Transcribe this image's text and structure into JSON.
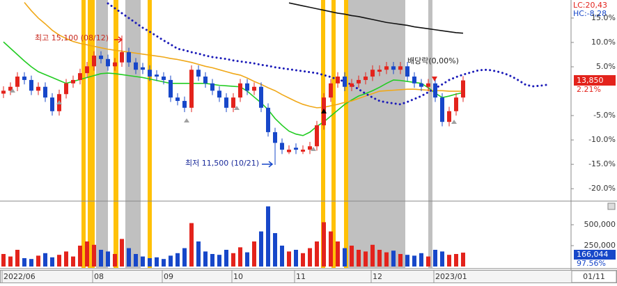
{
  "chart_data": {
    "type": "candlestick",
    "categories": [
      "2022/06",
      null,
      null,
      null,
      null,
      null,
      null,
      null,
      null,
      null,
      null,
      null,
      null,
      "08",
      null,
      null,
      null,
      null,
      null,
      null,
      null,
      null,
      null,
      "09",
      null,
      null,
      null,
      null,
      null,
      null,
      null,
      null,
      null,
      "10",
      null,
      null,
      null,
      null,
      null,
      null,
      null,
      null,
      "11",
      null,
      null,
      null,
      null,
      null,
      null,
      null,
      null,
      null,
      null,
      "12",
      null,
      null,
      null,
      null,
      null,
      null,
      null,
      null,
      "2023/01",
      null,
      null,
      null,
      null,
      null,
      null,
      null,
      null,
      null,
      null,
      null,
      null,
      null,
      null,
      null,
      null
    ],
    "open": [
      -0.5,
      0.1,
      0.9,
      3.0,
      2.3,
      0.1,
      0.9,
      -1.3,
      -4.1,
      -0.6,
      1.6,
      2.3,
      3.7,
      5.1,
      7.3,
      6.6,
      5.1,
      5.9,
      8.0,
      5.9,
      4.9,
      4.4,
      3.4,
      3.0,
      2.3,
      -1.3,
      -2.0,
      -3.4,
      4.4,
      3.0,
      1.6,
      0.1,
      -1.3,
      -3.4,
      -1.3,
      1.6,
      0.1,
      0.9,
      -3.4,
      -8.4,
      -10.6,
      -12.5,
      -11.6,
      -12.4,
      -12.0,
      -11.3,
      -7.0,
      -1.3,
      1.6,
      3.0,
      0.9,
      1.6,
      2.3,
      3.0,
      4.0,
      4.4,
      5.1,
      4.4,
      5.1,
      3.0,
      1.6,
      0.9,
      1.6,
      -1.3,
      -6.3,
      -4.1,
      -1.3,
      null,
      null,
      null,
      null,
      null,
      null,
      null,
      null,
      null,
      null,
      null,
      null
    ],
    "high": [
      1.0,
      1.8,
      3.9,
      3.9,
      3.2,
      1.8,
      1.8,
      -0.4,
      0.3,
      2.5,
      3.2,
      4.6,
      6.0,
      8.2,
      8.2,
      7.5,
      6.8,
      11.4,
      8.9,
      6.8,
      5.8,
      5.3,
      4.3,
      3.9,
      3.2,
      -0.4,
      -1.1,
      5.3,
      5.3,
      3.9,
      2.5,
      1.0,
      -0.4,
      -0.4,
      2.5,
      2.5,
      1.8,
      1.8,
      -2.5,
      -7.5,
      -9.7,
      -11.1,
      -10.7,
      -11.1,
      -10.4,
      -6.1,
      -0.4,
      2.5,
      3.9,
      3.9,
      2.5,
      3.2,
      3.9,
      5.3,
      5.3,
      6.0,
      6.0,
      6.0,
      6.0,
      3.9,
      2.5,
      2.5,
      2.5,
      -0.4,
      -3.2,
      -0.4,
      3.1,
      null,
      null,
      null,
      null,
      null,
      null,
      null,
      null,
      null,
      null,
      null,
      null
    ],
    "low": [
      -1.4,
      -0.8,
      0.0,
      1.4,
      -0.8,
      -0.8,
      -2.2,
      -5.0,
      -5.0,
      -1.5,
      0.7,
      1.4,
      2.8,
      4.2,
      5.7,
      4.2,
      4.2,
      5.0,
      5.0,
      3.5,
      3.5,
      2.1,
      2.1,
      1.4,
      -2.2,
      -2.9,
      -4.3,
      -4.3,
      2.1,
      0.7,
      -0.8,
      -2.2,
      -4.3,
      -4.3,
      -2.2,
      -0.8,
      -0.8,
      -4.3,
      -9.3,
      -15.1,
      -12.9,
      -12.9,
      -12.9,
      -12.9,
      -12.9,
      -12.2,
      -7.9,
      -2.2,
      0.7,
      0.0,
      0.0,
      0.7,
      1.4,
      2.1,
      3.1,
      3.5,
      3.5,
      3.5,
      2.1,
      0.7,
      0.0,
      0.0,
      -2.2,
      -7.2,
      -7.2,
      -5.0,
      -2.2,
      null,
      null,
      null,
      null,
      null,
      null,
      null,
      null,
      null,
      null,
      null,
      null
    ],
    "close": [
      0.1,
      0.9,
      3.0,
      2.3,
      0.1,
      0.9,
      -1.3,
      -4.1,
      -0.6,
      1.6,
      2.3,
      3.7,
      5.1,
      7.3,
      6.6,
      5.1,
      5.9,
      8.0,
      5.9,
      4.4,
      4.4,
      3.0,
      3.0,
      2.3,
      -1.3,
      -2.0,
      -3.4,
      4.4,
      3.0,
      1.6,
      0.1,
      -1.3,
      -3.4,
      -1.3,
      1.6,
      0.1,
      0.9,
      -3.4,
      -8.4,
      -10.6,
      -12.0,
      -12.0,
      -12.0,
      -12.0,
      -11.3,
      -7.0,
      -1.3,
      1.6,
      3.0,
      0.9,
      1.6,
      2.3,
      3.0,
      4.4,
      4.4,
      5.1,
      4.4,
      5.1,
      3.0,
      1.6,
      0.9,
      1.6,
      -1.3,
      -6.3,
      -4.1,
      -1.3,
      2.21,
      null,
      null,
      null,
      null,
      null,
      null,
      null,
      null,
      null,
      null,
      null,
      null
    ],
    "volume": [
      150000,
      120000,
      200000,
      100000,
      90000,
      130000,
      160000,
      110000,
      140000,
      180000,
      120000,
      250000,
      300000,
      260000,
      200000,
      180000,
      150000,
      330000,
      220000,
      150000,
      120000,
      100000,
      110000,
      90000,
      130000,
      160000,
      220000,
      520000,
      300000,
      180000,
      150000,
      140000,
      200000,
      160000,
      230000,
      170000,
      300000,
      420000,
      720000,
      400000,
      250000,
      180000,
      200000,
      160000,
      220000,
      300000,
      530000,
      420000,
      300000,
      220000,
      250000,
      200000,
      180000,
      260000,
      200000,
      170000,
      190000,
      150000,
      140000,
      130000,
      160000,
      120000,
      200000,
      180000,
      140000,
      150000,
      166044,
      null,
      null,
      null,
      null,
      null,
      null,
      null,
      null,
      null,
      null,
      null,
      null
    ],
    "up_color": "#e3231c",
    "down_color": "#1747c9",
    "series": [
      {
        "color": "#22cc22",
        "values": [
          10.1,
          8.8,
          7.5,
          6.2,
          5.0,
          4.0,
          3.4,
          2.8,
          2.2,
          1.6,
          2.0,
          2.4,
          2.8,
          3.2,
          3.6,
          3.7,
          3.6,
          3.4,
          3.2,
          3.0,
          2.8,
          2.5,
          2.2,
          1.9,
          1.6,
          1.6,
          1.6,
          1.6,
          1.6,
          1.6,
          1.4,
          1.2,
          1.1,
          1.0,
          0.9,
          0.0,
          -1.2,
          -2.4,
          -3.8,
          -5.6,
          -7.0,
          -8.2,
          -8.8,
          -9.1,
          -8.4,
          -7.2,
          -6.3,
          -5.1,
          -3.9,
          -2.7,
          -1.8,
          -1.0,
          -0.5,
          0.1,
          0.8,
          1.6,
          2.3,
          2.2,
          2.0,
          1.8,
          1.6,
          0.7,
          -0.4,
          -1.3,
          -1.0,
          -0.6,
          -0.3,
          null,
          null,
          null,
          null,
          null,
          null,
          null,
          null,
          null,
          null,
          null,
          null
        ]
      },
      {
        "color": "#f0a818",
        "values": [
          null,
          null,
          null,
          18.2,
          16.5,
          15.0,
          13.8,
          12.5,
          11.5,
          10.8,
          10.2,
          9.8,
          9.5,
          9.2,
          8.9,
          8.6,
          8.4,
          8.2,
          8.0,
          7.8,
          7.6,
          7.4,
          7.2,
          7.0,
          6.7,
          6.5,
          6.2,
          5.9,
          5.5,
          5.1,
          4.8,
          4.4,
          4.0,
          3.6,
          3.3,
          2.7,
          2.0,
          1.4,
          0.7,
          0.1,
          -0.7,
          -1.4,
          -2.1,
          -2.7,
          -3.1,
          -3.4,
          -3.3,
          -3.0,
          -2.7,
          -2.3,
          -2.0,
          -1.5,
          -1.0,
          -0.5,
          0.0,
          0.1,
          0.2,
          0.3,
          0.4,
          0.4,
          0.3,
          0.2,
          0.1,
          0.1,
          0.0,
          0.0,
          0.0,
          null,
          null,
          null,
          null,
          null,
          null,
          null,
          null,
          null,
          null,
          null,
          null
        ]
      },
      {
        "color": "#1a1ab8",
        "style": "dotted",
        "values": [
          null,
          null,
          null,
          null,
          null,
          null,
          null,
          null,
          null,
          null,
          null,
          null,
          null,
          null,
          null,
          18.0,
          17.0,
          16.0,
          15.0,
          14.0,
          13.0,
          12.2,
          11.3,
          10.4,
          9.6,
          8.7,
          8.4,
          8.0,
          7.7,
          7.3,
          7.0,
          6.8,
          6.6,
          6.3,
          6.1,
          5.9,
          5.7,
          5.4,
          5.2,
          4.9,
          4.7,
          4.5,
          4.3,
          4.1,
          3.9,
          3.7,
          3.3,
          2.9,
          2.4,
          2.0,
          1.3,
          0.4,
          -0.5,
          -1.3,
          -2.0,
          -2.3,
          -2.5,
          -2.7,
          -2.2,
          -1.6,
          -1.0,
          -0.2,
          0.6,
          1.4,
          2.3,
          2.9,
          3.4,
          3.8,
          4.2,
          4.4,
          4.3,
          4.0,
          3.6,
          3.0,
          2.2,
          1.3,
          1.0,
          1.1,
          1.3
        ]
      },
      {
        "color": "#111111",
        "values": [
          null,
          null,
          null,
          null,
          null,
          null,
          null,
          null,
          null,
          null,
          null,
          null,
          null,
          null,
          null,
          null,
          null,
          null,
          null,
          null,
          null,
          null,
          null,
          null,
          null,
          null,
          null,
          null,
          null,
          null,
          null,
          null,
          null,
          null,
          null,
          null,
          null,
          null,
          null,
          null,
          null,
          18.1,
          17.8,
          17.5,
          17.2,
          16.9,
          16.6,
          16.3,
          16.0,
          15.8,
          15.5,
          15.3,
          15.0,
          14.7,
          14.4,
          14.1,
          13.9,
          13.7,
          13.5,
          13.2,
          13.0,
          12.8,
          12.6,
          12.4,
          12.2,
          12.0,
          11.9,
          null,
          null,
          null,
          null,
          null,
          null,
          null,
          null,
          null,
          null,
          null,
          null
        ]
      }
    ],
    "ylim": [
      -22.4,
      18.7
    ],
    "yticks": [
      {
        "value": 15,
        "label": "15.0%"
      },
      {
        "value": 10,
        "label": "10.0%"
      },
      {
        "value": 5,
        "label": "5.0%"
      },
      {
        "value": -5,
        "label": "-5.0%"
      },
      {
        "value": -10,
        "label": "-10.0%"
      },
      {
        "value": -15,
        "label": "-15.0%"
      },
      {
        "value": -20,
        "label": "-20.0%"
      }
    ],
    "volume_ylim": [
      0,
      758000
    ],
    "volume_yticks": [
      {
        "value": 500000,
        "label": "500,000"
      },
      {
        "value": 250000,
        "label": "250,000"
      }
    ],
    "high_label": "최고 15,100 (08/12)",
    "low_label": "최저 11,500 (10/21)",
    "dividend_label": "배당락(0,00%)",
    "lc_label": "LC:20,43",
    "hc_label": "HC:-8,28",
    "price_label": "13,850",
    "change_label": "2.21%",
    "volume_last_label": "166,044",
    "volume_pct_label": "97.56%",
    "end_date_label": "01/11"
  }
}
